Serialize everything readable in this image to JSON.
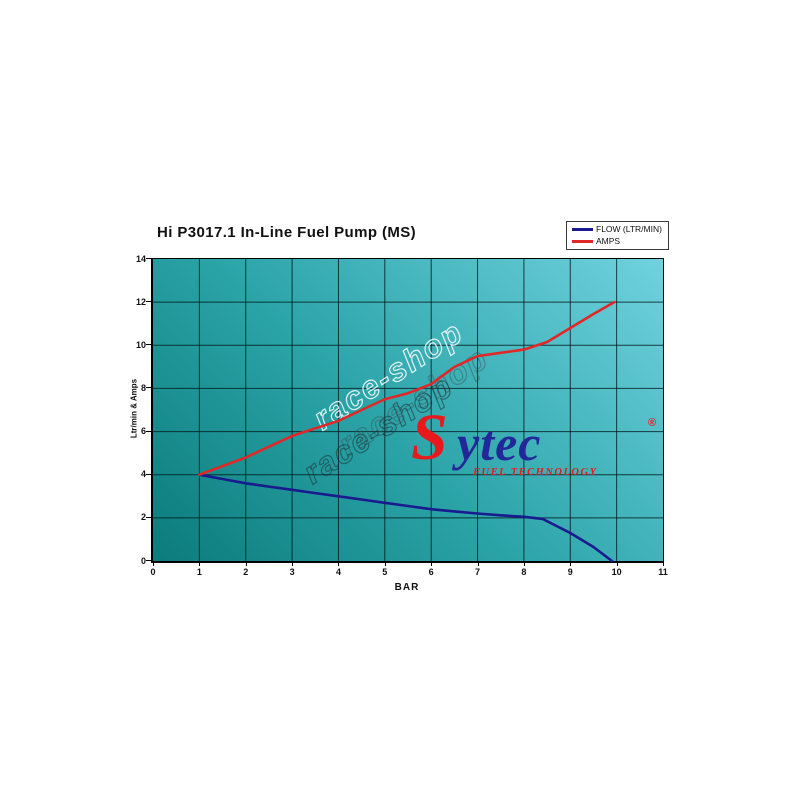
{
  "title": "Hi P3017.1 In-Line Fuel Pump (MS)",
  "watermark_text": "race-shop",
  "logo": {
    "s": "S",
    "ytec": "ytec",
    "reg": "®",
    "tagline": "FUEL TECHNOLOGY",
    "s_color": "#e8191d",
    "text_color": "#232899"
  },
  "chart_data": {
    "type": "line",
    "title": "Hi P3017.1 In-Line Fuel Pump (MS)",
    "xlabel": "BAR",
    "ylabel": "Ltr/min & Amps",
    "xlim": [
      0,
      11
    ],
    "ylim": [
      0,
      14
    ],
    "x_ticks": [
      0,
      1,
      2,
      3,
      4,
      5,
      6,
      7,
      8,
      9,
      10,
      11
    ],
    "y_ticks": [
      0,
      2,
      4,
      6,
      8,
      10,
      12,
      14
    ],
    "grid": true,
    "grid_color": "rgba(0,25,25,0.8)",
    "legend_position": "top-right",
    "plot_bg_gradient": [
      "#0c7b7c",
      "#70d2de"
    ],
    "series": [
      {
        "name": "FLOW (LTR/MIN)",
        "color": "#1a1a8f",
        "points": [
          [
            1,
            4
          ],
          [
            1.5,
            3.8
          ],
          [
            2,
            3.6
          ],
          [
            2.5,
            3.45
          ],
          [
            3,
            3.3
          ],
          [
            3.5,
            3.15
          ],
          [
            4,
            3.0
          ],
          [
            4.5,
            2.85
          ],
          [
            5,
            2.7
          ],
          [
            5.5,
            2.55
          ],
          [
            6,
            2.4
          ],
          [
            6.5,
            2.3
          ],
          [
            7,
            2.2
          ],
          [
            7.5,
            2.12
          ],
          [
            8,
            2.05
          ],
          [
            8.4,
            1.95
          ],
          [
            9,
            1.3
          ],
          [
            9.5,
            0.65
          ],
          [
            9.9,
            0
          ]
        ]
      },
      {
        "name": "AMPS",
        "color": "#e02828",
        "points": [
          [
            1,
            4
          ],
          [
            1.5,
            4.4
          ],
          [
            2,
            4.8
          ],
          [
            2.5,
            5.3
          ],
          [
            3,
            5.8
          ],
          [
            3.5,
            6.15
          ],
          [
            4,
            6.5
          ],
          [
            4.5,
            7.0
          ],
          [
            5,
            7.5
          ],
          [
            5.5,
            7.78
          ],
          [
            6,
            8.2
          ],
          [
            6.5,
            9.0
          ],
          [
            7,
            9.5
          ],
          [
            7.5,
            9.65
          ],
          [
            8,
            9.8
          ],
          [
            8.5,
            10.15
          ],
          [
            9,
            10.8
          ],
          [
            9.5,
            11.45
          ],
          [
            9.95,
            12
          ]
        ]
      }
    ]
  }
}
